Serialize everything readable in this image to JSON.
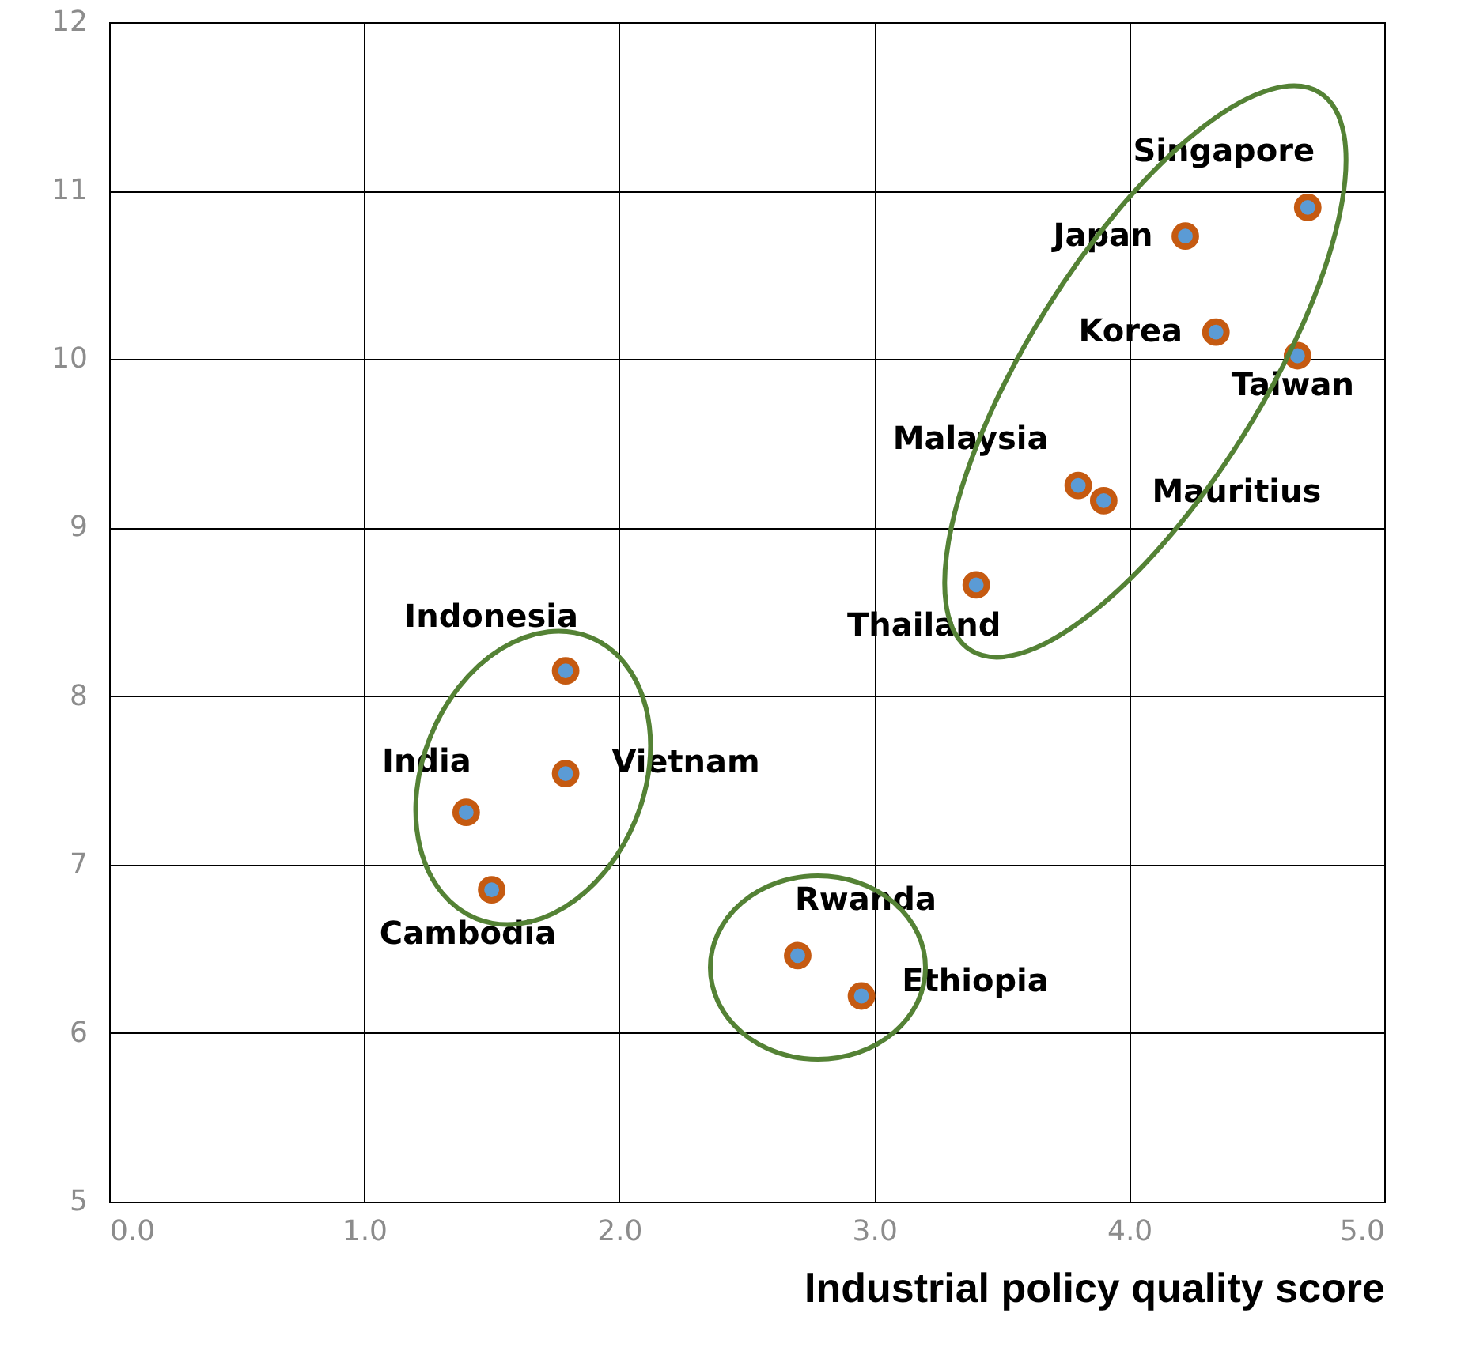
{
  "chart_data": {
    "type": "scatter",
    "xlabel": "Industrial policy quality score",
    "x": [
      4.7,
      4.22,
      4.34,
      4.66,
      3.8,
      3.9,
      3.4,
      1.79,
      1.79,
      1.4,
      1.5,
      2.7,
      2.95
    ],
    "series": [
      {
        "color": "#c55a11",
        "values": [
          10.9,
          10.73,
          10.16,
          10.02,
          9.25,
          9.16,
          8.66,
          8.15,
          7.54,
          7.31,
          6.85,
          6.46,
          6.22
        ]
      }
    ],
    "annotations": [
      {
        "text": "Singapore",
        "x": 4.7,
        "y": 10.9
      },
      {
        "text": "Japan",
        "x": 4.22,
        "y": 10.73
      },
      {
        "text": "Korea",
        "x": 4.34,
        "y": 10.16
      },
      {
        "text": "Taiwan",
        "x": 4.66,
        "y": 10.02
      },
      {
        "text": "Malaysia",
        "x": 3.8,
        "y": 9.25
      },
      {
        "text": "Mauritius",
        "x": 3.9,
        "y": 9.16
      },
      {
        "text": "Thailand",
        "x": 3.4,
        "y": 8.66
      },
      {
        "text": "Indonesia",
        "x": 1.79,
        "y": 8.15
      },
      {
        "text": "Vietnam",
        "x": 1.79,
        "y": 7.54
      },
      {
        "text": "India",
        "x": 1.4,
        "y": 7.31
      },
      {
        "text": "Cambodia",
        "x": 1.5,
        "y": 6.85
      },
      {
        "text": "Rwanda",
        "x": 2.7,
        "y": 6.46
      },
      {
        "text": "Ethiopia",
        "x": 2.95,
        "y": 6.22
      }
    ],
    "xlim": [
      0,
      5
    ],
    "ylim": [
      5,
      12
    ],
    "xticks": [
      {
        "value": 0,
        "label": "0.0"
      },
      {
        "value": 1,
        "label": "1.0"
      },
      {
        "value": 2,
        "label": "2.0"
      },
      {
        "value": 3,
        "label": "3.0"
      },
      {
        "value": 4,
        "label": "4.0"
      },
      {
        "value": 5,
        "label": "5.0"
      }
    ],
    "yticks": [
      5,
      6,
      7,
      8,
      9,
      10,
      11,
      12
    ],
    "grid": true,
    "marker": "circle"
  }
}
